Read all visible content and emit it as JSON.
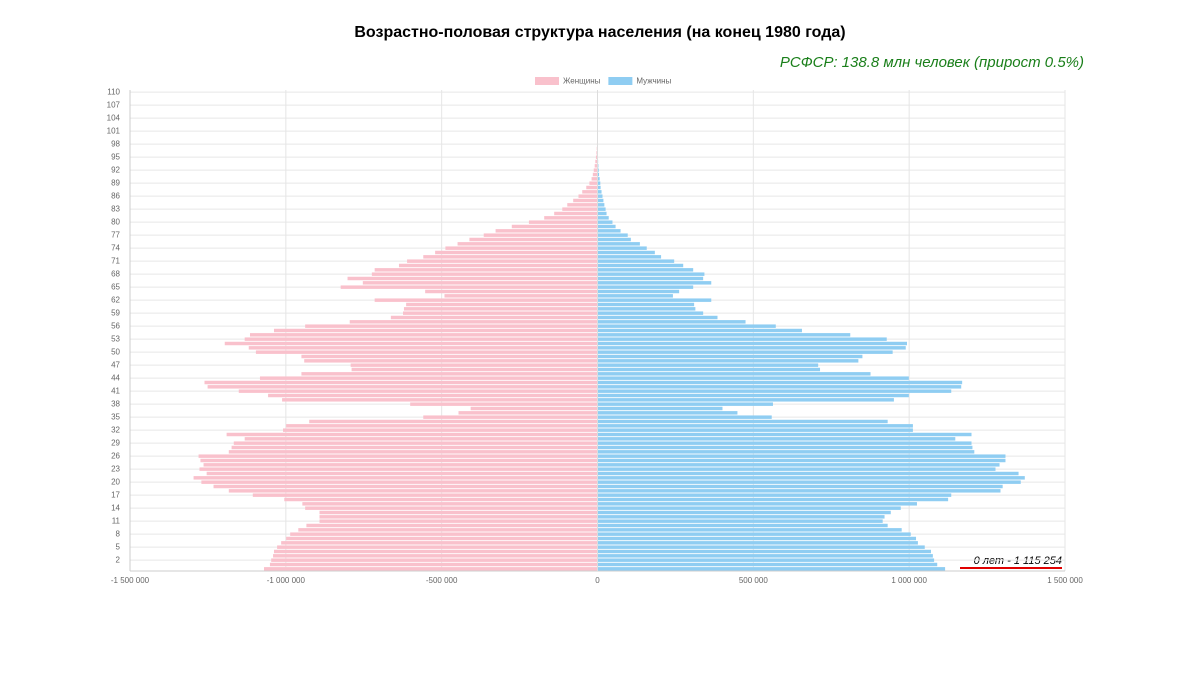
{
  "chart_data": {
    "type": "population_pyramid",
    "title": "Возрастно-половая структура населения (на конец 1980 года)",
    "subtitle": "РСФСР: 138.8 млн человек (прирост 0.5%)",
    "annotation": "0 лет - 1 115 254",
    "legend": "top",
    "grid": true,
    "categories": [
      null,
      null,
      2,
      null,
      null,
      5,
      null,
      null,
      8,
      null,
      null,
      11,
      null,
      null,
      14,
      null,
      null,
      17,
      null,
      null,
      20,
      null,
      null,
      23,
      null,
      null,
      26,
      null,
      null,
      29,
      null,
      null,
      32,
      null,
      null,
      35,
      null,
      null,
      38,
      null,
      null,
      41,
      null,
      null,
      44,
      null,
      null,
      47,
      null,
      null,
      50,
      null,
      null,
      53,
      null,
      null,
      56,
      null,
      null,
      59,
      null,
      null,
      62,
      null,
      null,
      65,
      null,
      null,
      68,
      null,
      null,
      71,
      null,
      null,
      74,
      null,
      null,
      77,
      null,
      null,
      80,
      null,
      null,
      83,
      null,
      null,
      86,
      null,
      null,
      89,
      null,
      null,
      92,
      null,
      null,
      95,
      null,
      null,
      98,
      null,
      null,
      101,
      null,
      null,
      104,
      null,
      null,
      107,
      null,
      null,
      110
    ],
    "series": [
      {
        "name": "Женщины",
        "color": "#f9c1cc",
        "values": [
          -1070000,
          -1051000,
          -1047000,
          -1041000,
          -1038000,
          -1028000,
          -1015000,
          -999000,
          -986000,
          -960000,
          -934000,
          -892000,
          -892000,
          -892000,
          -938000,
          -947000,
          -1005000,
          -1106000,
          -1183000,
          -1232000,
          -1271000,
          -1296000,
          -1254000,
          -1277000,
          -1264000,
          -1274000,
          -1280000,
          -1183000,
          -1174000,
          -1167000,
          -1132000,
          -1190000,
          -1009000,
          -999000,
          -925000,
          -559000,
          -446000,
          -407000,
          -601000,
          -1012000,
          -1057000,
          -1151000,
          -1251000,
          -1261000,
          -1083000,
          -950000,
          -789000,
          -792000,
          -941000,
          -950000,
          -1096000,
          -1119000,
          -1196000,
          -1132000,
          -1115000,
          -1038000,
          -938000,
          -795000,
          -663000,
          -624000,
          -621000,
          -614000,
          -715000,
          -491000,
          -553000,
          -824000,
          -753000,
          -802000,
          -724000,
          -715000,
          -637000,
          -611000,
          -559000,
          -521000,
          -488000,
          -449000,
          -411000,
          -365000,
          -327000,
          -275000,
          -220000,
          -171000,
          -139000,
          -113000,
          -97000,
          -78000,
          -61000,
          -49000,
          -36000,
          -26000,
          -19000,
          -15000,
          -12000,
          -9000,
          -7000,
          -5000,
          -3500,
          -2500,
          -1700,
          -1000,
          -600,
          -400,
          -250,
          -150,
          -100,
          -50,
          -30,
          -20,
          -10,
          0,
          0
        ]
      },
      {
        "name": "Мужчины",
        "color": "#8fcdf2",
        "values": [
          1115254,
          1090000,
          1080000,
          1076000,
          1070000,
          1050000,
          1028000,
          1022000,
          1005000,
          976000,
          931000,
          915000,
          921000,
          941000,
          973000,
          1025000,
          1125000,
          1135000,
          1293000,
          1300000,
          1358000,
          1371000,
          1351000,
          1277000,
          1290000,
          1309000,
          1309000,
          1209000,
          1203000,
          1200000,
          1148000,
          1200000,
          1012000,
          1012000,
          931000,
          559000,
          449000,
          401000,
          563000,
          951000,
          999000,
          1135000,
          1167000,
          1170000,
          999000,
          876000,
          714000,
          708000,
          837000,
          850000,
          947000,
          989000,
          993000,
          928000,
          811000,
          656000,
          572000,
          475000,
          385000,
          339000,
          314000,
          310000,
          365000,
          242000,
          262000,
          307000,
          365000,
          339000,
          343000,
          307000,
          275000,
          246000,
          204000,
          184000,
          158000,
          136000,
          107000,
          97000,
          74000,
          58000,
          48000,
          36000,
          29000,
          26000,
          22000,
          19000,
          16000,
          13000,
          10000,
          9000,
          7000,
          5000,
          4000,
          3000,
          2000,
          1500,
          1000,
          800,
          500,
          300,
          0,
          0,
          0,
          0,
          0,
          0,
          0,
          0,
          0,
          0,
          0
        ]
      }
    ],
    "xlim": [
      -1500000,
      1500000
    ],
    "xticks": [
      {
        "value": -1500000,
        "label": "-1 500 000"
      },
      {
        "value": -1000000,
        "label": "-1 000 000"
      },
      {
        "value": -500000,
        "label": "-500 000"
      },
      0,
      {
        "value": 500000,
        "label": "500 000"
      },
      {
        "value": 1000000,
        "label": "1 000 000"
      },
      {
        "value": 1500000,
        "label": "1 500 000"
      }
    ]
  }
}
